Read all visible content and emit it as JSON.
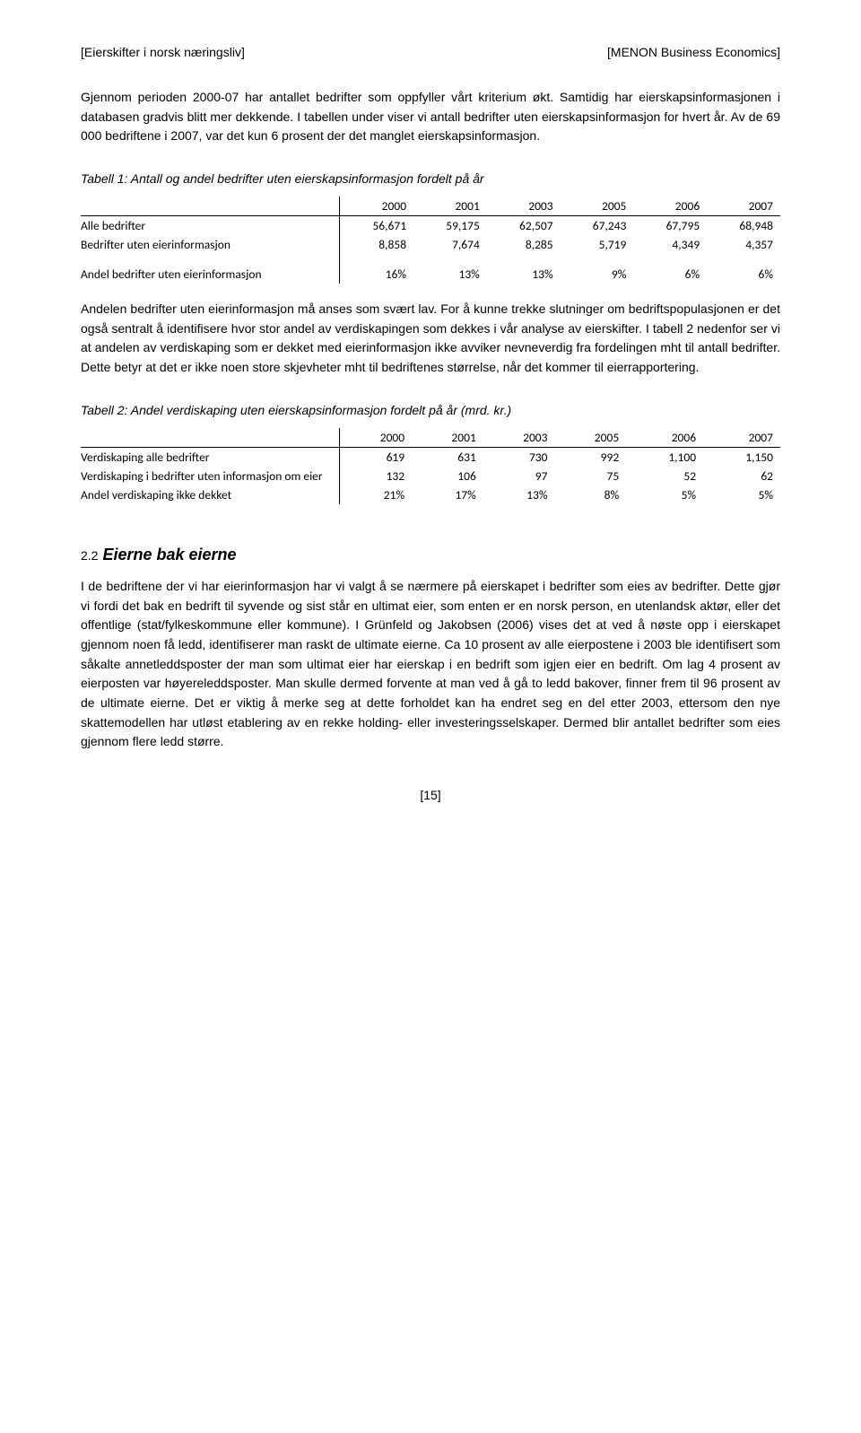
{
  "header": {
    "left": "[Eierskifter i norsk næringsliv]",
    "right": "[MENON Business Economics]"
  },
  "para1": "Gjennom perioden 2000-07 har antallet bedrifter som oppfyller vårt kriterium økt. Samtidig har eierskapsinformasjonen i databasen gradvis blitt mer dekkende. I tabellen under viser vi antall bedrifter uten eierskapsinformasjon for hvert år. Av de 69 000 bedriftene i 2007, var det kun 6 prosent der det manglet eierskapsinformasjon.",
  "table1": {
    "caption": "Tabell 1: Antall og andel bedrifter uten eierskapsinformasjon fordelt på år",
    "headers": [
      "",
      "2000",
      "2001",
      "2003",
      "2005",
      "2006",
      "2007"
    ],
    "rows": [
      [
        "Alle bedrifter",
        "56,671",
        "59,175",
        "62,507",
        "67,243",
        "67,795",
        "68,948"
      ],
      [
        "Bedrifter uten eierinformasjon",
        "8,858",
        "7,674",
        "8,285",
        "5,719",
        "4,349",
        "4,357"
      ]
    ],
    "summary": [
      "Andel bedrifter uten eierinformasjon",
      "16%",
      "13%",
      "13%",
      "9%",
      "6%",
      "6%"
    ]
  },
  "para2": "Andelen bedrifter uten eierinformasjon må anses som svært lav. For å kunne trekke slutninger om bedriftspopulasjonen er det også sentralt å identifisere hvor stor andel av verdiskapingen som dekkes i vår analyse av eierskifter. I tabell 2 nedenfor ser vi at andelen av verdiskaping som er dekket med eierinformasjon ikke avviker nevneverdig fra fordelingen mht til antall bedrifter. Dette betyr at det er ikke noen store skjevheter mht til bedriftenes størrelse, når det kommer til eierrapportering.",
  "table2": {
    "caption": "Tabell 2: Andel verdiskaping uten eierskapsinformasjon fordelt på år (mrd. kr.)",
    "headers": [
      "",
      "2000",
      "2001",
      "2003",
      "2005",
      "2006",
      "2007"
    ],
    "rows": [
      [
        "Verdiskaping alle bedrifter",
        "619",
        "631",
        "730",
        "992",
        "1,100",
        "1,150"
      ],
      [
        "Verdiskaping i bedrifter uten informasjon om eier",
        "132",
        "106",
        "97",
        "75",
        "52",
        "62"
      ],
      [
        "Andel verdiskaping ikke dekket",
        "21%",
        "17%",
        "13%",
        "8%",
        "5%",
        "5%"
      ]
    ]
  },
  "section": {
    "number": "2.2",
    "title": "Eierne bak eierne"
  },
  "para3": "I de bedriftene der vi har eierinformasjon har vi valgt å se nærmere på eierskapet i bedrifter som eies av bedrifter. Dette gjør vi fordi det bak en bedrift til syvende og sist står en ultimat eier, som enten er en norsk person, en utenlandsk aktør, eller det offentlige (stat/fylkeskommune eller kommune). I Grünfeld og Jakobsen (2006) vises det at ved å nøste opp i eierskapet gjennom noen få ledd, identifiserer man raskt de ultimate eierne. Ca 10 prosent av alle eierpostene i 2003 ble identifisert som såkalte annetleddsposter der man som ultimat eier har eierskap i en bedrift som igjen eier en bedrift. Om lag 4 prosent av eierposten var høyereleddsposter. Man skulle dermed forvente at man ved å gå to ledd bakover, finner frem til 96 prosent av de ultimate eierne. Det er viktig å merke seg at dette forholdet kan ha endret seg en del etter 2003, ettersom den nye skattemodellen har utløst etablering av en rekke holding- eller investeringsselskaper. Dermed blir antallet bedrifter som eies gjennom flere ledd større.",
  "footer": "[15]"
}
